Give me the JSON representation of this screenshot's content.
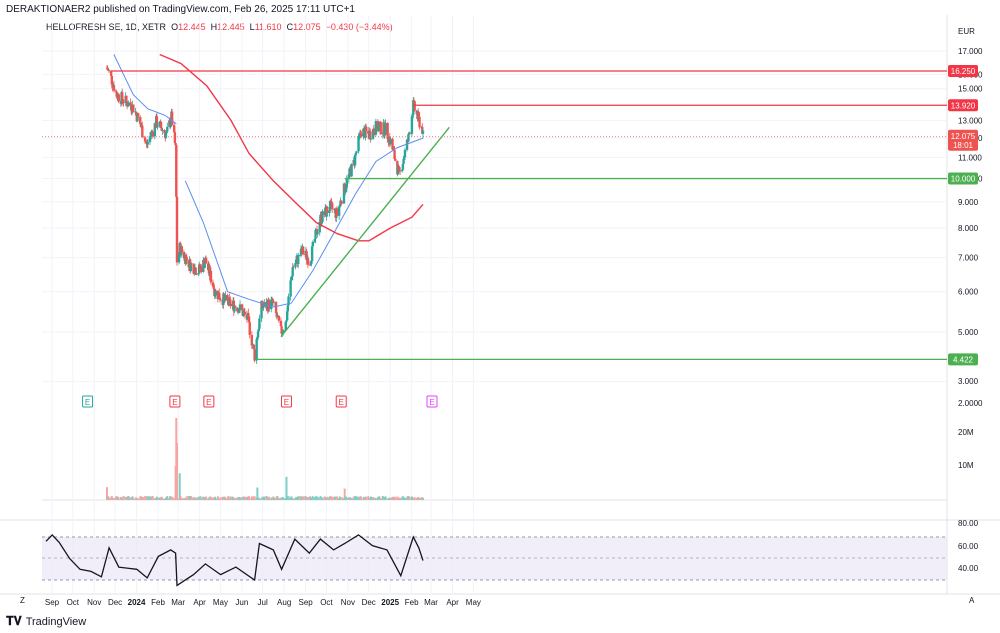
{
  "header": {
    "published": "DERAKTIONAER2 published on TradingView.com, Feb 26, 2025 17:11 UTC+1"
  },
  "legend": {
    "symbol": "HELLOFRESH SE, 1D, XETR",
    "o_label": "O",
    "o": "12.445",
    "h_label": "H",
    "h": "12.445",
    "l_label": "L",
    "l": "11.610",
    "c_label": "C",
    "c": "12.075",
    "change": "−0.430 (−3.44%)"
  },
  "currency": "EUR",
  "footer": {
    "brand": "TradingView"
  },
  "colors": {
    "up": "#26a69a",
    "down": "#ef5350",
    "ma50": "#5b8def",
    "ma200": "#f23645",
    "hline_red": "#f23645",
    "hline_green": "#4caf50",
    "rsi": "#131722",
    "rsi_band": "#ede7f6"
  },
  "chart_data": [
    {
      "type": "candlestick",
      "title": "HELLOFRESH SE, 1D, XETR",
      "ylabel": "EUR",
      "yscale": "log",
      "ylim": [
        2.0,
        18.0
      ],
      "y_ticks": [
        "17.000",
        "16.000",
        "15.000",
        "13.000",
        "12.000",
        "11.000",
        "10.000",
        "9.000",
        "8.000",
        "7.000",
        "6.000",
        "5.000",
        "4.000",
        "3.000",
        "2.0000"
      ],
      "x_ticks": [
        "Sep",
        "Oct",
        "Nov",
        "Dec",
        "2024",
        "Feb",
        "Mar",
        "Apr",
        "May",
        "Jun",
        "Jul",
        "Aug",
        "Sep",
        "Oct",
        "Nov",
        "Dec",
        "2025",
        "Feb",
        "Mar",
        "Apr",
        "May"
      ],
      "x_start": "2023-09-01",
      "price_path": [
        [
          "2023-11-28",
          16.5
        ],
        [
          "2023-12-05",
          15.6
        ],
        [
          "2023-12-12",
          14.6
        ],
        [
          "2024-01-05",
          13.8
        ],
        [
          "2024-01-15",
          12.8
        ],
        [
          "2024-01-24",
          11.6
        ],
        [
          "2024-02-07",
          12.9
        ],
        [
          "2024-02-22",
          12.2
        ],
        [
          "2024-02-29",
          13.2
        ],
        [
          "2024-03-06",
          11.4
        ],
        [
          "2024-03-08",
          6.9
        ],
        [
          "2024-03-12",
          7.3
        ],
        [
          "2024-03-26",
          6.8
        ],
        [
          "2024-04-08",
          6.6
        ],
        [
          "2024-04-18",
          6.9
        ],
        [
          "2024-05-02",
          6.0
        ],
        [
          "2024-05-20",
          5.7
        ],
        [
          "2024-06-05",
          5.6
        ],
        [
          "2024-06-18",
          5.3
        ],
        [
          "2024-06-28",
          4.5
        ],
        [
          "2024-07-08",
          5.6
        ],
        [
          "2024-07-24",
          5.7
        ],
        [
          "2024-08-05",
          5.0
        ],
        [
          "2024-08-12",
          5.2
        ],
        [
          "2024-08-22",
          6.7
        ],
        [
          "2024-09-05",
          7.2
        ],
        [
          "2024-09-16",
          6.9
        ],
        [
          "2024-09-30",
          8.3
        ],
        [
          "2024-10-15",
          8.8
        ],
        [
          "2024-10-25",
          8.5
        ],
        [
          "2024-11-05",
          9.6
        ],
        [
          "2024-11-18",
          10.7
        ],
        [
          "2024-11-29",
          12.4
        ],
        [
          "2024-12-10",
          12.2
        ],
        [
          "2024-12-20",
          12.6
        ],
        [
          "2025-01-03",
          12.5
        ],
        [
          "2025-01-10",
          11.8
        ],
        [
          "2025-01-23",
          10.1
        ],
        [
          "2025-02-05",
          12.0
        ],
        [
          "2025-02-12",
          13.9
        ],
        [
          "2025-02-18",
          13.2
        ],
        [
          "2025-02-25",
          12.5
        ],
        [
          "2025-02-26",
          12.075
        ]
      ],
      "ma50": [
        [
          "2024-03-20",
          9.9
        ],
        [
          "2024-04-15",
          8.2
        ],
        [
          "2024-05-06",
          6.8
        ],
        [
          "2024-05-20",
          6.0
        ],
        [
          "2024-06-20",
          5.8
        ],
        [
          "2024-07-25",
          5.6
        ],
        [
          "2024-08-20",
          5.7
        ],
        [
          "2024-09-20",
          6.6
        ],
        [
          "2024-10-20",
          7.8
        ],
        [
          "2024-11-20",
          9.3
        ],
        [
          "2024-12-20",
          10.8
        ],
        [
          "2025-01-20",
          11.5
        ],
        [
          "2025-02-26",
          12.0
        ]
      ],
      "ma50_early": [
        [
          "2023-12-08",
          17.5
        ],
        [
          "2024-01-05",
          14.6
        ],
        [
          "2024-01-26",
          13.7
        ],
        [
          "2024-02-20",
          13.3
        ],
        [
          "2024-03-07",
          12.8
        ]
      ],
      "ma200": [
        [
          "2024-02-12",
          17.5
        ],
        [
          "2024-03-14",
          16.8
        ],
        [
          "2024-04-20",
          15.2
        ],
        [
          "2024-05-25",
          13.0
        ],
        [
          "2024-06-20",
          11.2
        ],
        [
          "2024-07-25",
          9.9
        ],
        [
          "2024-08-25",
          9.0
        ],
        [
          "2024-09-25",
          8.2
        ],
        [
          "2024-10-25",
          7.8
        ],
        [
          "2024-11-25",
          7.55
        ],
        [
          "2024-12-10",
          7.55
        ],
        [
          "2025-01-10",
          8.0
        ],
        [
          "2025-02-10",
          8.4
        ],
        [
          "2025-02-26",
          8.9
        ]
      ],
      "horizontal_lines": [
        {
          "label": "16.250",
          "value": 16.25,
          "color": "red",
          "from": "2023-12-05"
        },
        {
          "label": "13.920",
          "value": 13.92,
          "color": "red",
          "from": "2025-02-12"
        },
        {
          "label": "10.000",
          "value": 10.0,
          "color": "green",
          "from": "2024-11-05"
        },
        {
          "label": "4.422",
          "value": 4.422,
          "color": "green",
          "from": "2024-06-28"
        }
      ],
      "trendline": {
        "from": [
          "2024-08-05",
          4.9
        ],
        "to": [
          "2025-04-05",
          12.6
        ]
      },
      "current_price": {
        "value": "12.075",
        "countdown": "18:01"
      },
      "earnings_markers": [
        {
          "date": "2023-10-31",
          "label": "E",
          "color": "#26a69a"
        },
        {
          "date": "2024-03-05",
          "label": "E",
          "color": "#f23645"
        },
        {
          "date": "2024-04-23",
          "label": "E",
          "color": "#f23645"
        },
        {
          "date": "2024-08-13",
          "label": "E",
          "color": "#f23645"
        },
        {
          "date": "2024-10-31",
          "label": "E",
          "color": "#f23645"
        },
        {
          "date": "2025-03-11",
          "label": "E",
          "color": "#e040fb"
        }
      ]
    },
    {
      "type": "bar",
      "title": "Volume",
      "y_ticks": [
        "20M",
        "10M"
      ],
      "ylim": [
        0,
        23
      ],
      "unit": "M",
      "spikes": [
        [
          "2023-11-28",
          3.6
        ],
        [
          "2024-03-06",
          9.5
        ],
        [
          "2024-03-07",
          23.0
        ],
        [
          "2024-03-08",
          16.0
        ],
        [
          "2024-03-12",
          7.5
        ],
        [
          "2024-07-02",
          3.5
        ],
        [
          "2024-08-13",
          6.5
        ],
        [
          "2024-11-05",
          3.2
        ]
      ],
      "baseline": 0.6
    },
    {
      "type": "line",
      "title": "RSI",
      "y_ticks": [
        "80.00",
        "60.00",
        "40.00"
      ],
      "ylim": [
        30,
        80
      ],
      "band": [
        30,
        70
      ],
      "values": [
        [
          "2023-09-01",
          66
        ],
        [
          "2023-09-10",
          72
        ],
        [
          "2023-09-20",
          65
        ],
        [
          "2023-10-05",
          50
        ],
        [
          "2023-10-20",
          40
        ],
        [
          "2023-11-05",
          38
        ],
        [
          "2023-11-20",
          33
        ],
        [
          "2023-12-01",
          60
        ],
        [
          "2023-12-15",
          42
        ],
        [
          "2024-01-10",
          40
        ],
        [
          "2024-01-25",
          32
        ],
        [
          "2024-02-10",
          52
        ],
        [
          "2024-02-28",
          58
        ],
        [
          "2024-03-06",
          55
        ],
        [
          "2024-03-08",
          25
        ],
        [
          "2024-04-01",
          35
        ],
        [
          "2024-04-18",
          45
        ],
        [
          "2024-05-10",
          35
        ],
        [
          "2024-06-01",
          42
        ],
        [
          "2024-06-28",
          30
        ],
        [
          "2024-07-05",
          64
        ],
        [
          "2024-07-25",
          58
        ],
        [
          "2024-08-06",
          40
        ],
        [
          "2024-08-25",
          68
        ],
        [
          "2024-09-15",
          55
        ],
        [
          "2024-10-01",
          68
        ],
        [
          "2024-10-20",
          58
        ],
        [
          "2024-11-05",
          64
        ],
        [
          "2024-11-25",
          72
        ],
        [
          "2024-12-15",
          62
        ],
        [
          "2025-01-05",
          58
        ],
        [
          "2025-01-25",
          34
        ],
        [
          "2025-02-12",
          70
        ],
        [
          "2025-02-20",
          60
        ],
        [
          "2025-02-26",
          48
        ]
      ]
    }
  ]
}
